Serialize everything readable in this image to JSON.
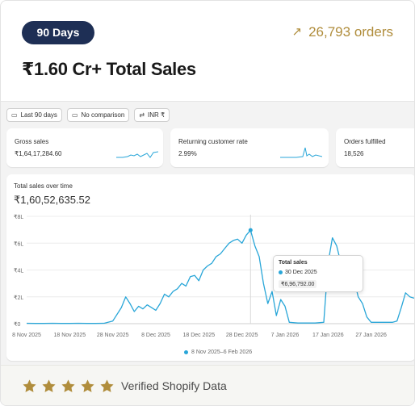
{
  "header": {
    "badge": "90 Days",
    "orders_text": "26,793 orders",
    "headline": "₹1.60 Cr+ Total Sales"
  },
  "toolbar": {
    "date_range": "Last 90 days",
    "comparison": "No comparison",
    "currency": "INR ₹"
  },
  "metrics": [
    {
      "title": "Gross sales",
      "value": "₹1,64,17,284.60"
    },
    {
      "title": "Returning customer rate",
      "value": "2.99%"
    },
    {
      "title": "Orders fulfilled",
      "value": "18,526"
    }
  ],
  "chart": {
    "title": "Total sales over time",
    "total": "₹1,60,52,635.52",
    "legend": "8 Nov 2025–6 Feb 2026",
    "tooltip": {
      "title": "Total sales",
      "date": "30 Dec 2025",
      "value": "₹6,96,792.00"
    }
  },
  "chart_data": {
    "type": "line",
    "title": "Total sales over time",
    "xlabel": "",
    "ylabel": "",
    "y_ticks": [
      "₹0",
      "₹2L",
      "₹4L",
      "₹6L",
      "₹8L"
    ],
    "ylim": [
      0,
      800000
    ],
    "x_ticks": [
      "8 Nov 2025",
      "18 Nov 2025",
      "28 Nov 2025",
      "8 Dec 2025",
      "18 Dec 2025",
      "28 Dec 2025",
      "7 Jan 2026",
      "17 Jan 2026",
      "27 Jan 2026"
    ],
    "grid": true,
    "legend_position": "bottom",
    "series": [
      {
        "name": "8 Nov 2025–6 Feb 2026",
        "color": "#29a6d8",
        "dates": [
          "2025-11-08",
          "2025-11-10",
          "2025-11-12",
          "2025-11-14",
          "2025-11-16",
          "2025-11-18",
          "2025-11-20",
          "2025-11-22",
          "2025-11-24",
          "2025-11-26",
          "2025-11-28",
          "2025-11-30",
          "2025-12-01",
          "2025-12-02",
          "2025-12-03",
          "2025-12-04",
          "2025-12-05",
          "2025-12-06",
          "2025-12-07",
          "2025-12-08",
          "2025-12-09",
          "2025-12-10",
          "2025-12-11",
          "2025-12-12",
          "2025-12-13",
          "2025-12-14",
          "2025-12-15",
          "2025-12-16",
          "2025-12-17",
          "2025-12-18",
          "2025-12-19",
          "2025-12-20",
          "2025-12-21",
          "2025-12-22",
          "2025-12-23",
          "2025-12-24",
          "2025-12-25",
          "2025-12-26",
          "2025-12-27",
          "2025-12-28",
          "2025-12-29",
          "2025-12-30",
          "2025-12-31",
          "2026-01-01",
          "2026-01-02",
          "2026-01-03",
          "2026-01-04",
          "2026-01-05",
          "2026-01-06",
          "2026-01-07",
          "2026-01-08",
          "2026-01-10",
          "2026-01-12",
          "2026-01-14",
          "2026-01-16",
          "2026-01-17",
          "2026-01-18",
          "2026-01-19",
          "2026-01-20",
          "2026-01-21",
          "2026-01-22",
          "2026-01-23",
          "2026-01-24",
          "2026-01-25",
          "2026-01-26",
          "2026-01-27",
          "2026-01-28",
          "2026-01-30",
          "2026-02-01",
          "2026-02-02",
          "2026-02-03",
          "2026-02-04",
          "2026-02-05",
          "2026-02-06"
        ],
        "values": [
          3000,
          2000,
          2000,
          3000,
          2000,
          2000,
          3000,
          2000,
          2000,
          3000,
          20000,
          120000,
          200000,
          150000,
          90000,
          130000,
          110000,
          140000,
          120000,
          100000,
          150000,
          220000,
          200000,
          240000,
          260000,
          300000,
          280000,
          350000,
          360000,
          320000,
          400000,
          430000,
          450000,
          500000,
          520000,
          560000,
          600000,
          620000,
          630000,
          600000,
          660000,
          696792,
          580000,
          500000,
          300000,
          150000,
          240000,
          60000,
          180000,
          130000,
          10000,
          5000,
          5000,
          5000,
          10000,
          450000,
          640000,
          580000,
          450000,
          320000,
          250000,
          330000,
          200000,
          150000,
          50000,
          10000,
          10000,
          10000,
          10000,
          20000,
          120000,
          230000,
          200000,
          190000
        ]
      }
    ]
  },
  "footer": {
    "rating": 5,
    "verified": "Verified Shopify Data",
    "star_color": "#b08d3c"
  },
  "icons": {
    "arrow": "arrow-up-right-icon",
    "calendar": "calendar-icon",
    "compare": "calendar-compare-icon",
    "currency": "currency-exchange-icon",
    "star": "star-icon"
  }
}
